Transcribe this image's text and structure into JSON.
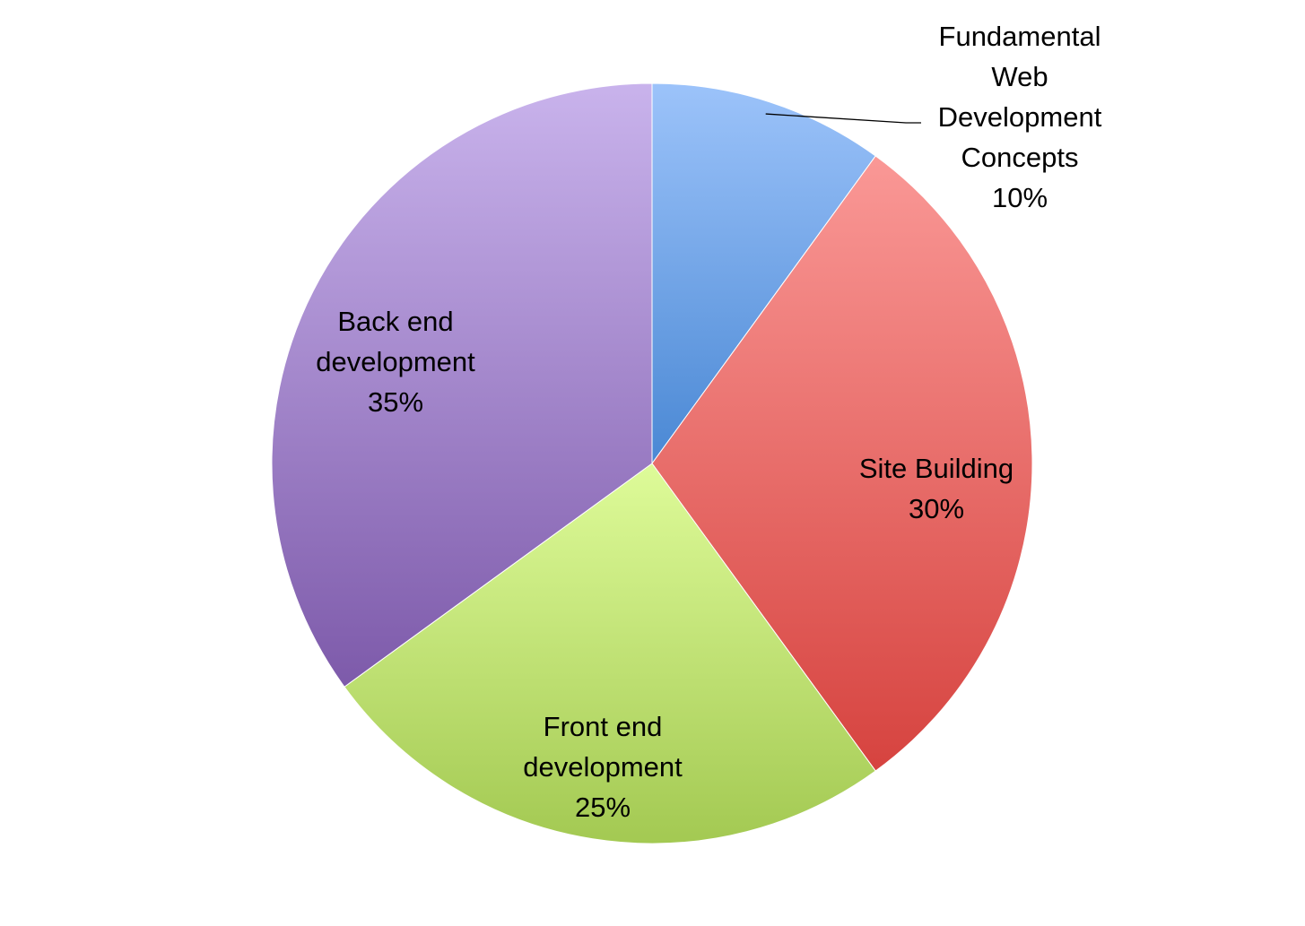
{
  "chart_data": {
    "type": "pie",
    "title": "",
    "start_angle_deg": 0,
    "direction": "clockwise",
    "slices": [
      {
        "label": "Fundamental Web Development Concepts",
        "label_lines": [
          "Fundamental",
          "Web",
          "Development",
          "Concepts"
        ],
        "value": 10,
        "percent_label": "10%",
        "color_light": "#9CC3FA",
        "color_dark": "#4A88D4",
        "label_outside": true
      },
      {
        "label": "Site Building",
        "label_lines": [
          "Site Building"
        ],
        "value": 30,
        "percent_label": "30%",
        "color_light": "#FA9896",
        "color_dark": "#D6433F",
        "label_outside": false
      },
      {
        "label": "Front end development",
        "label_lines": [
          "Front end",
          "development"
        ],
        "value": 25,
        "percent_label": "25%",
        "color_light": "#DEFB99",
        "color_dark": "#A3C952",
        "label_outside": false
      },
      {
        "label": "Back end development",
        "label_lines": [
          "Back end",
          "development"
        ],
        "value": 35,
        "percent_label": "35%",
        "color_light": "#C9B3EC",
        "color_dark": "#7D5AAA",
        "label_outside": false
      }
    ]
  }
}
